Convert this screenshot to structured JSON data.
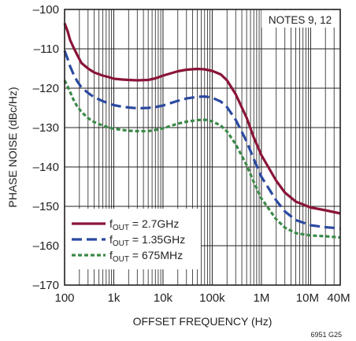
{
  "chart_data": {
    "type": "line",
    "xlabel": "OFFSET FREQUENCY (Hz)",
    "ylabel": "PHASE NOISE (dBc/Hz)",
    "x_scale": "log",
    "xlim": [
      100,
      40000000
    ],
    "ylim": [
      -170,
      -100
    ],
    "grid": true,
    "legend_position": "bottom-left",
    "x_ticks": [
      {
        "value": 100,
        "label": "100"
      },
      {
        "value": 1000,
        "label": "1k"
      },
      {
        "value": 10000,
        "label": "10k"
      },
      {
        "value": 100000,
        "label": "100k"
      },
      {
        "value": 1000000,
        "label": "1M"
      },
      {
        "value": 10000000,
        "label": "10M"
      },
      {
        "value": 40000000,
        "label": "40M"
      }
    ],
    "y_ticks": [
      {
        "value": -100,
        "label": "–100"
      },
      {
        "value": -110,
        "label": "–110"
      },
      {
        "value": -120,
        "label": "–120"
      },
      {
        "value": -130,
        "label": "–130"
      },
      {
        "value": -140,
        "label": "–140"
      },
      {
        "value": -150,
        "label": "–150"
      },
      {
        "value": -160,
        "label": "–160"
      },
      {
        "value": -170,
        "label": "–170"
      }
    ],
    "annotation": "NOTES 9, 12",
    "figure_id": "6951 G25",
    "series": [
      {
        "name_main": "f",
        "name_sub": "OUT",
        "name_rest": " = 2.7GHz",
        "color": "#8a1538",
        "dash": "solid",
        "x": [
          100,
          115,
          130,
          150,
          180,
          220,
          300,
          400,
          600,
          800,
          1000,
          1500,
          2000,
          3000,
          5000,
          7000,
          10000,
          20000,
          30000,
          50000,
          70000,
          100000,
          150000,
          200000,
          300000,
          500000,
          700000,
          1000000,
          2000000,
          3000000,
          5000000,
          10000000,
          20000000,
          40000000
        ],
        "y": [
          -103.5,
          -105.5,
          -107.8,
          -109.5,
          -111.5,
          -113.6,
          -115,
          -116,
          -116.8,
          -117.2,
          -117.6,
          -117.8,
          -117.9,
          -118,
          -117.9,
          -117.5,
          -116.8,
          -115.7,
          -115.3,
          -115.1,
          -115.2,
          -115.6,
          -116.5,
          -118,
          -121.5,
          -127.5,
          -132.5,
          -137,
          -143.5,
          -146.5,
          -148.8,
          -150.3,
          -151,
          -151.8
        ]
      },
      {
        "name_main": "f",
        "name_sub": "OUT",
        "name_rest": " = 1.35GHz",
        "color": "#2b4aa0",
        "dash": "long",
        "x": [
          100,
          115,
          130,
          150,
          180,
          220,
          300,
          400,
          600,
          800,
          1000,
          1500,
          2000,
          3000,
          5000,
          7000,
          10000,
          20000,
          30000,
          50000,
          70000,
          100000,
          150000,
          200000,
          300000,
          500000,
          700000,
          1000000,
          2000000,
          3000000,
          5000000,
          10000000,
          20000000,
          40000000
        ],
        "y": [
          -110.5,
          -112.5,
          -114.5,
          -116.3,
          -118.2,
          -119.8,
          -121.2,
          -122.3,
          -123.3,
          -123.9,
          -124.3,
          -124.7,
          -124.9,
          -125.1,
          -125,
          -124.8,
          -124.4,
          -123.2,
          -122.6,
          -122.2,
          -122.1,
          -122.4,
          -123.4,
          -124.8,
          -128,
          -133.5,
          -138,
          -142.5,
          -148.5,
          -151.3,
          -153.5,
          -154.8,
          -155.3,
          -155.6
        ]
      },
      {
        "name_main": "f",
        "name_sub": "OUT",
        "name_rest": " = 675MHz",
        "color": "#3a8a48",
        "dash": "short",
        "x": [
          100,
          115,
          130,
          150,
          180,
          220,
          300,
          400,
          600,
          800,
          1000,
          1500,
          2000,
          3000,
          5000,
          7000,
          10000,
          20000,
          30000,
          50000,
          70000,
          100000,
          150000,
          200000,
          300000,
          500000,
          700000,
          1000000,
          2000000,
          3000000,
          5000000,
          10000000,
          20000000,
          40000000
        ],
        "y": [
          -118,
          -119.5,
          -121,
          -122.8,
          -124.6,
          -126,
          -127.6,
          -128.6,
          -129.5,
          -130,
          -130.3,
          -130.6,
          -130.8,
          -130.9,
          -130.9,
          -130.6,
          -130.2,
          -129,
          -128.5,
          -128.1,
          -128,
          -128.4,
          -129.5,
          -131,
          -134.2,
          -139.5,
          -143.8,
          -148,
          -153.3,
          -155.4,
          -156.8,
          -157.4,
          -157.6,
          -157.9
        ]
      }
    ]
  }
}
